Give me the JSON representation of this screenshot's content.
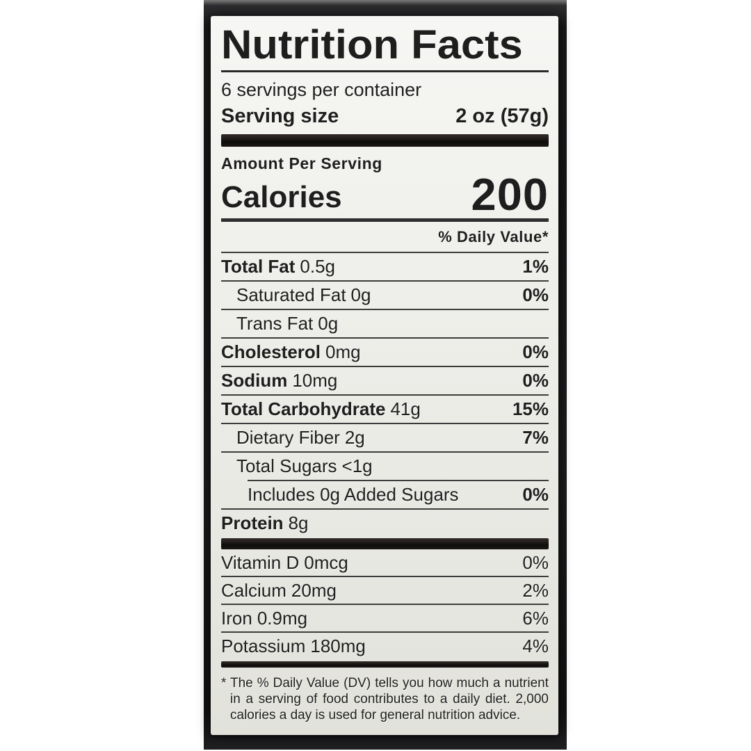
{
  "label": {
    "title": "Nutrition Facts",
    "servings_per_container": "6 servings per container",
    "serving_size_label": "Serving size",
    "serving_size_value": "2 oz (57g)",
    "amount_per_serving": "Amount Per Serving",
    "calories_label": "Calories",
    "calories_value": "200",
    "daily_value_header": "% Daily Value*",
    "nutrients": [
      {
        "name": "Total Fat",
        "amount": "0.5g",
        "dv": "1%",
        "bold": true,
        "indent": 0
      },
      {
        "name": "Saturated Fat",
        "amount": "0g",
        "dv": "0%",
        "bold": false,
        "indent": 1
      },
      {
        "name": "Trans Fat",
        "amount": "0g",
        "dv": "",
        "bold": false,
        "indent": 1
      },
      {
        "name": "Cholesterol",
        "amount": "0mg",
        "dv": "0%",
        "bold": true,
        "indent": 0
      },
      {
        "name": "Sodium",
        "amount": "10mg",
        "dv": "0%",
        "bold": true,
        "indent": 0
      },
      {
        "name": "Total Carbohydrate",
        "amount": "41g",
        "dv": "15%",
        "bold": true,
        "indent": 0
      },
      {
        "name": "Dietary Fiber",
        "amount": "2g",
        "dv": "7%",
        "bold": false,
        "indent": 1
      },
      {
        "name": "Total Sugars",
        "amount": "<1g",
        "dv": "",
        "bold": false,
        "indent": 1
      },
      {
        "name": "Includes 0g Added Sugars",
        "amount": "",
        "dv": "0%",
        "bold": false,
        "indent": 2
      },
      {
        "name": "Protein",
        "amount": "8g",
        "dv": "",
        "bold": true,
        "indent": 0
      }
    ],
    "micronutrients": [
      {
        "name": "Vitamin D",
        "amount": "0mcg",
        "dv": "0%"
      },
      {
        "name": "Calcium",
        "amount": "20mg",
        "dv": "2%"
      },
      {
        "name": "Iron",
        "amount": "0.9mg",
        "dv": "6%"
      },
      {
        "name": "Potassium",
        "amount": "180mg",
        "dv": "4%"
      }
    ],
    "footnote_marker": "*",
    "footnote": "The % Daily Value (DV) tells you how much a nutrient in a serving of food contributes to a daily diet. 2,000 calories a day is used for general nutrition advice.",
    "colors": {
      "page_bg": "#ffffff",
      "photo_bg": "#1a1a1c",
      "label_bg": "#efefeb",
      "text": "#1e1e1e",
      "separator_bar": "#14110f",
      "hairline": "#3c3c3c"
    }
  }
}
